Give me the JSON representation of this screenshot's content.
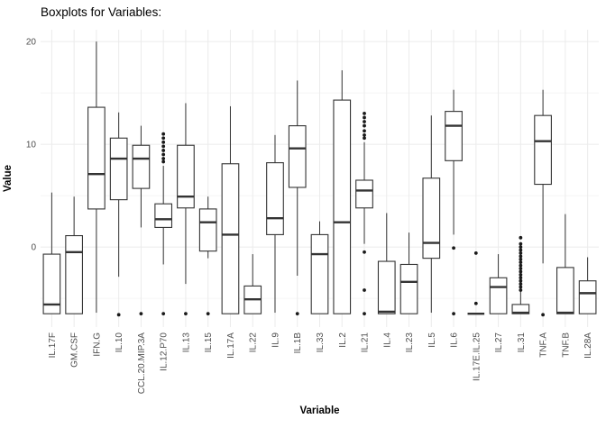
{
  "chart_data": {
    "type": "boxplot",
    "title": "Boxplots for Variables:",
    "xlabel": "Variable",
    "ylabel": "Value",
    "ylim": [
      -7.8,
      21.15
    ],
    "yticks_major": [
      0,
      10,
      20
    ],
    "yticks_minor": [
      -5,
      5,
      15
    ],
    "grid": true,
    "legend": "none",
    "colors": {
      "box_stroke": "#333333",
      "median_stroke": "#333333",
      "outlier_fill": "#1a1a1a",
      "grid_major": "#ebebeb",
      "grid_minor": "#f1f1f1",
      "tick_text": "#4d4d4d",
      "background": "#ffffff"
    },
    "categories": [
      "IL.17F",
      "GM.CSF",
      "IFN.G",
      "IL.10",
      "CCL.20.MIP.3A",
      "IL.12.P70",
      "IL.13",
      "IL.15",
      "IL.17A",
      "IL.22",
      "IL.9",
      "IL.1B",
      "IL.33",
      "IL.2",
      "IL.21",
      "IL.4",
      "IL.23",
      "IL.5",
      "IL.6",
      "IL.17E.IL.25",
      "IL.27",
      "IL.31",
      "TNF.A",
      "TNF.B",
      "IL.28A"
    ],
    "series": [
      {
        "name": "IL.17F",
        "min": -6.5,
        "q1": -6.5,
        "median": -5.6,
        "q3": -0.7,
        "max": 5.3,
        "outliers": []
      },
      {
        "name": "GM.CSF",
        "min": -6.5,
        "q1": -6.5,
        "median": -0.5,
        "q3": 1.1,
        "max": 4.9,
        "outliers": []
      },
      {
        "name": "IFN.G",
        "min": -6.4,
        "q1": 3.7,
        "median": 7.1,
        "q3": 13.6,
        "max": 20.0,
        "outliers": []
      },
      {
        "name": "IL.10",
        "min": -2.9,
        "q1": 4.6,
        "median": 8.6,
        "q3": 10.6,
        "max": 13.1,
        "outliers": [
          -6.6
        ]
      },
      {
        "name": "CCL.20.MIP.3A",
        "min": 1.9,
        "q1": 5.7,
        "median": 8.6,
        "q3": 9.9,
        "max": 11.8,
        "outliers": [
          -6.5
        ]
      },
      {
        "name": "IL.12.P70",
        "min": -1.7,
        "q1": 1.9,
        "median": 2.7,
        "q3": 4.2,
        "max": 7.9,
        "outliers": [
          11.0,
          10.6,
          10.2,
          9.8,
          9.4,
          9.0,
          8.6,
          8.3,
          -6.5
        ]
      },
      {
        "name": "IL.13",
        "min": -3.6,
        "q1": 3.8,
        "median": 4.9,
        "q3": 9.9,
        "max": 14.0,
        "outliers": [
          -6.5
        ]
      },
      {
        "name": "IL.15",
        "min": -1.1,
        "q1": -0.4,
        "median": 2.4,
        "q3": 3.7,
        "max": 4.9,
        "outliers": [
          -6.5
        ]
      },
      {
        "name": "IL.17A",
        "min": -6.5,
        "q1": -6.5,
        "median": 1.2,
        "q3": 8.1,
        "max": 13.7,
        "outliers": []
      },
      {
        "name": "IL.22",
        "min": -6.5,
        "q1": -6.5,
        "median": -5.1,
        "q3": -3.8,
        "max": -0.7,
        "outliers": []
      },
      {
        "name": "IL.9",
        "min": -6.4,
        "q1": 1.2,
        "median": 2.8,
        "q3": 8.2,
        "max": 10.9,
        "outliers": []
      },
      {
        "name": "IL.1B",
        "min": -2.8,
        "q1": 5.8,
        "median": 9.6,
        "q3": 11.8,
        "max": 16.2,
        "outliers": [
          -6.5
        ]
      },
      {
        "name": "IL.33",
        "min": -6.5,
        "q1": -6.5,
        "median": -0.7,
        "q3": 1.2,
        "max": 2.5,
        "outliers": []
      },
      {
        "name": "IL.2",
        "min": -6.5,
        "q1": -6.5,
        "median": 2.4,
        "q3": 14.3,
        "max": 17.2,
        "outliers": []
      },
      {
        "name": "IL.21",
        "min": 0.3,
        "q1": 3.8,
        "median": 5.5,
        "q3": 6.5,
        "max": 10.2,
        "outliers": [
          13.0,
          12.6,
          12.2,
          11.8,
          11.3,
          10.9,
          10.6,
          -0.5,
          -4.2,
          -6.5
        ]
      },
      {
        "name": "IL.4",
        "min": -6.5,
        "q1": -6.5,
        "median": -6.3,
        "q3": -1.4,
        "max": 3.3,
        "outliers": []
      },
      {
        "name": "IL.23",
        "min": -6.5,
        "q1": -6.5,
        "median": -3.4,
        "q3": -1.7,
        "max": 1.4,
        "outliers": []
      },
      {
        "name": "IL.5",
        "min": -6.4,
        "q1": -1.1,
        "median": 0.4,
        "q3": 6.7,
        "max": 12.8,
        "outliers": []
      },
      {
        "name": "IL.6",
        "min": 1.2,
        "q1": 8.4,
        "median": 11.8,
        "q3": 13.2,
        "max": 15.3,
        "outliers": [
          -0.1,
          -6.5
        ]
      },
      {
        "name": "IL.17E.IL.25",
        "min": -6.5,
        "q1": -6.5,
        "median": -6.5,
        "q3": -6.5,
        "max": -6.5,
        "outliers": [
          -0.6,
          -5.5
        ]
      },
      {
        "name": "IL.27",
        "min": -6.5,
        "q1": -6.5,
        "median": -3.9,
        "q3": -3.0,
        "max": -0.7,
        "outliers": []
      },
      {
        "name": "IL.31",
        "min": -6.5,
        "q1": -6.5,
        "median": -6.4,
        "q3": -5.6,
        "max": -4.3,
        "outliers": [
          0.9,
          0.3,
          0.0,
          -0.3,
          -0.6,
          -0.9,
          -1.2,
          -1.5,
          -1.8,
          -2.1,
          -2.4,
          -2.7,
          -3.0,
          -3.3,
          -3.6,
          -3.9,
          -4.2
        ]
      },
      {
        "name": "TNF.A",
        "min": -1.6,
        "q1": 6.1,
        "median": 10.3,
        "q3": 12.8,
        "max": 15.3,
        "outliers": [
          -6.6
        ]
      },
      {
        "name": "TNF.B",
        "min": -6.5,
        "q1": -6.5,
        "median": -6.4,
        "q3": -2.0,
        "max": 3.2,
        "outliers": []
      },
      {
        "name": "IL.28A",
        "min": -6.5,
        "q1": -6.5,
        "median": -4.5,
        "q3": -3.3,
        "max": -1.0,
        "outliers": []
      }
    ]
  }
}
